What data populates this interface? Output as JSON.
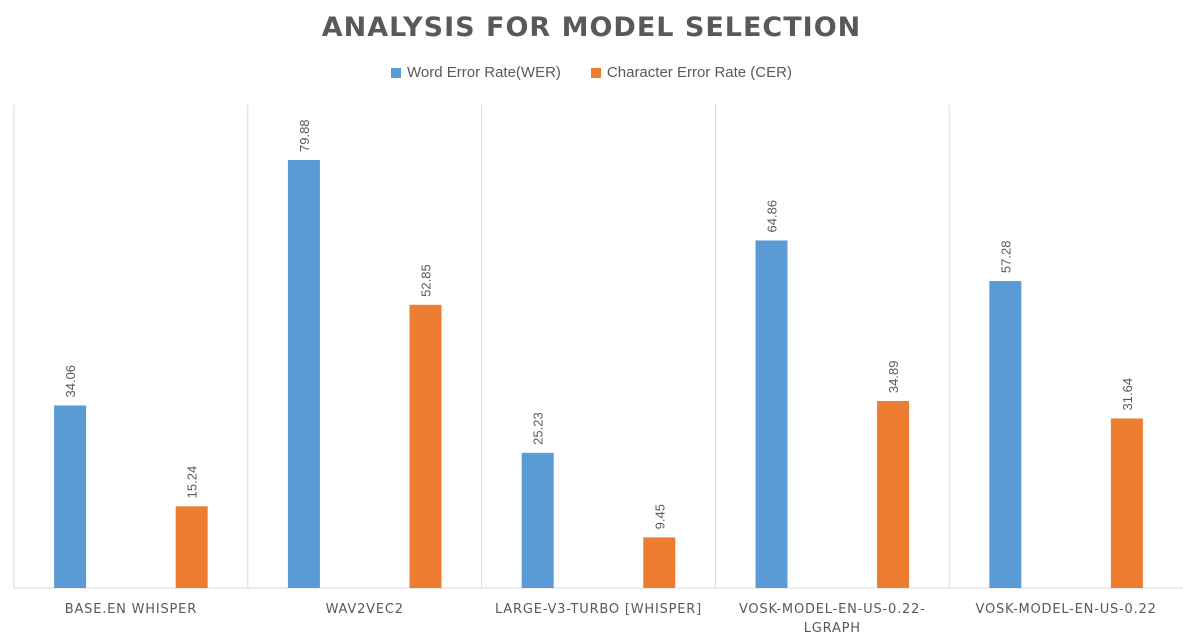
{
  "chart_data": {
    "type": "bar",
    "title": "ANALYSIS FOR MODEL SELECTION",
    "categories": [
      [
        "BASE.EN WHISPER"
      ],
      [
        "WAV2VEC2"
      ],
      [
        "LARGE-V3-TURBO [WHISPER]"
      ],
      [
        "VOSK-MODEL-EN-US-0.22-",
        "LGRAPH"
      ],
      [
        "VOSK-MODEL-EN-US-0.22"
      ]
    ],
    "series": [
      {
        "name": "Word Error Rate(WER)",
        "color": "#5B9BD5",
        "values": [
          34.06,
          79.88,
          25.23,
          64.86,
          57.28
        ],
        "labels": [
          "34.06",
          "79.88",
          "25.23",
          "64.86",
          "57.28"
        ]
      },
      {
        "name": "Character Error Rate (CER)",
        "color": "#ED7D31",
        "values": [
          15.24,
          52.85,
          9.45,
          34.89,
          31.64
        ],
        "labels": [
          "15.24",
          "52.85",
          "9.45",
          "34.89",
          "31.64"
        ]
      }
    ],
    "ylim": [
      0,
      90
    ],
    "legend_position": "top-center",
    "grid": false,
    "xlabel": "",
    "ylabel": ""
  }
}
